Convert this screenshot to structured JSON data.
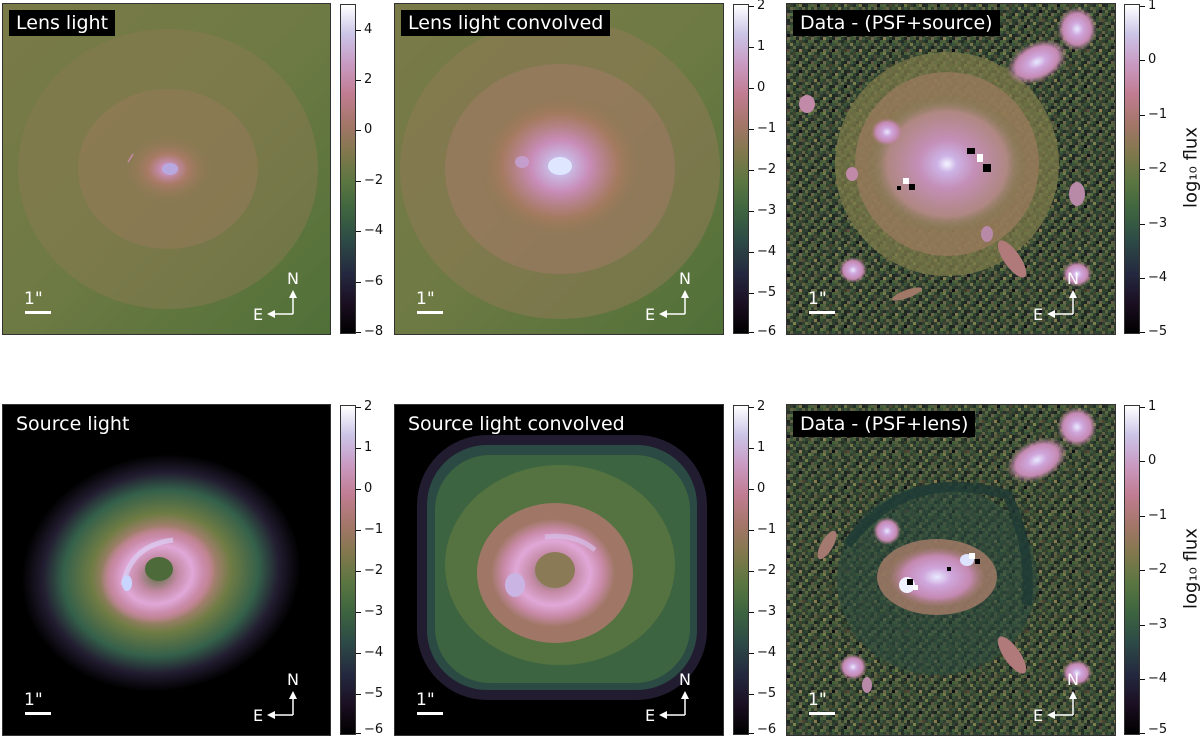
{
  "colors": {
    "cmap": [
      "#000000",
      "#1b0f22",
      "#24283f",
      "#2d4a46",
      "#3c6440",
      "#5b7640",
      "#81784d",
      "#a5766a",
      "#c17d93",
      "#c99ac2",
      "#cbc4e6",
      "#ffffff"
    ]
  },
  "panels": [
    {
      "id": "lens-light",
      "title": "Lens light",
      "cbar_ticks": [
        "4",
        "2",
        "0",
        "−2",
        "−4",
        "−6",
        "−8"
      ],
      "cbar_label": ""
    },
    {
      "id": "lens-light-convolved",
      "title": "Lens light convolved",
      "cbar_ticks": [
        "2",
        "1",
        "0",
        "−1",
        "−2",
        "−3",
        "−4",
        "−5",
        "−6"
      ],
      "cbar_label": ""
    },
    {
      "id": "data-psf-source",
      "title": "Data - (PSF+source)",
      "cbar_ticks": [
        "1",
        "0",
        "−1",
        "−2",
        "−3",
        "−4",
        "−5"
      ],
      "cbar_label": "log₁₀ flux"
    },
    {
      "id": "source-light",
      "title": "Source light",
      "cbar_ticks": [
        "2",
        "1",
        "0",
        "−1",
        "−2",
        "−3",
        "−4",
        "−5",
        "−6"
      ],
      "cbar_label": ""
    },
    {
      "id": "source-light-convolved",
      "title": "Source light convolved",
      "cbar_ticks": [
        "2",
        "1",
        "0",
        "−1",
        "−2",
        "−3",
        "−4",
        "−5",
        "−6"
      ],
      "cbar_label": ""
    },
    {
      "id": "data-psf-lens",
      "title": "Data - (PSF+lens)",
      "cbar_ticks": [
        "1",
        "0",
        "−1",
        "−2",
        "−3",
        "−4",
        "−5"
      ],
      "cbar_label": "log₁₀ flux"
    }
  ],
  "scale_label": "1\"",
  "compass": {
    "north": "N",
    "east": "E"
  }
}
